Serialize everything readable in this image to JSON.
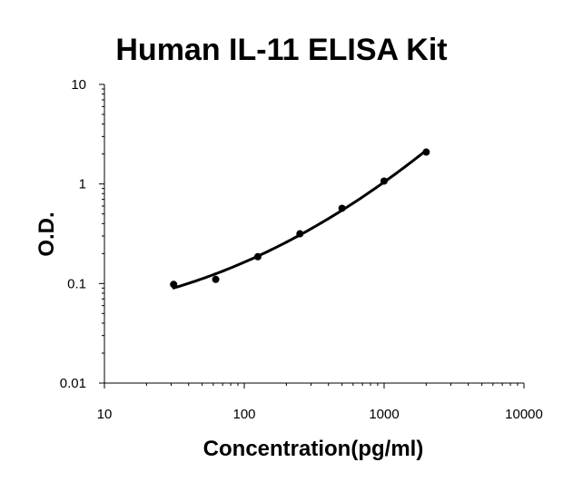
{
  "chart_data": {
    "type": "scatter",
    "title": "Human IL-11 ELISA Kit",
    "xlabel": "Concentration(pg/ml)",
    "ylabel": "O.D.",
    "x_scale": "log",
    "y_scale": "log",
    "xlim": [
      10,
      10000
    ],
    "ylim": [
      0.01,
      10
    ],
    "x_ticks": [
      "10",
      "100",
      "1000",
      "10000"
    ],
    "y_ticks": [
      "0.01",
      "0.1",
      "1",
      "10"
    ],
    "grid": false,
    "legend": "none",
    "series": [
      {
        "points": [
          {
            "x": 31.25,
            "y": 0.098
          },
          {
            "x": 62.5,
            "y": 0.11
          },
          {
            "x": 125,
            "y": 0.186
          },
          {
            "x": 250,
            "y": 0.316
          },
          {
            "x": 500,
            "y": 0.57
          },
          {
            "x": 1000,
            "y": 1.07
          },
          {
            "x": 2000,
            "y": 2.09
          }
        ],
        "fit": "smooth-curve",
        "color": "#000000"
      }
    ]
  }
}
